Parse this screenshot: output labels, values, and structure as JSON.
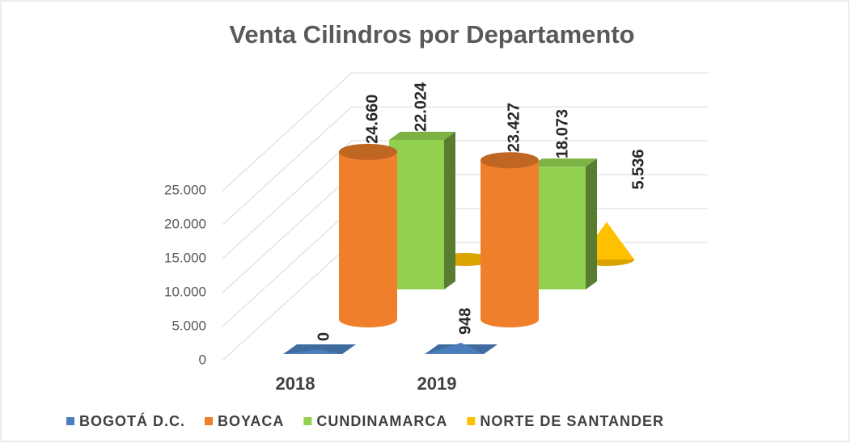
{
  "chart_data": {
    "type": "bar3d",
    "title": "Venta Cilindros por Departamento",
    "categories": [
      "2018",
      "2019"
    ],
    "series": [
      {
        "name": "BOGOTÁ D.C.",
        "color": "#4a7ebb",
        "values": [
          0,
          948
        ],
        "value_labels": [
          "0",
          "948"
        ]
      },
      {
        "name": "BOYACA",
        "color": "#f07f2c",
        "values": [
          24660,
          23427
        ],
        "value_labels": [
          "24.660",
          "23.427"
        ]
      },
      {
        "name": "CUNDINAMARCA",
        "color": "#92d050",
        "values": [
          22024,
          18073
        ],
        "value_labels": [
          "22.024",
          "18.073"
        ]
      },
      {
        "name": "NORTE DE SANTANDER",
        "color": "#ffc000",
        "values": [
          0,
          5536
        ],
        "value_labels": [
          "0",
          "5.536"
        ]
      }
    ],
    "ylim": [
      0,
      25000
    ],
    "yticks": [
      0,
      {
        "value": 5000,
        "label": "5.000"
      },
      {
        "value": 10000,
        "label": "10.000"
      },
      {
        "value": 15000,
        "label": "15.000"
      },
      {
        "value": 20000,
        "label": "20.000"
      },
      {
        "value": 25000,
        "label": "25.000"
      }
    ],
    "grid": true,
    "legend": "bottom"
  }
}
